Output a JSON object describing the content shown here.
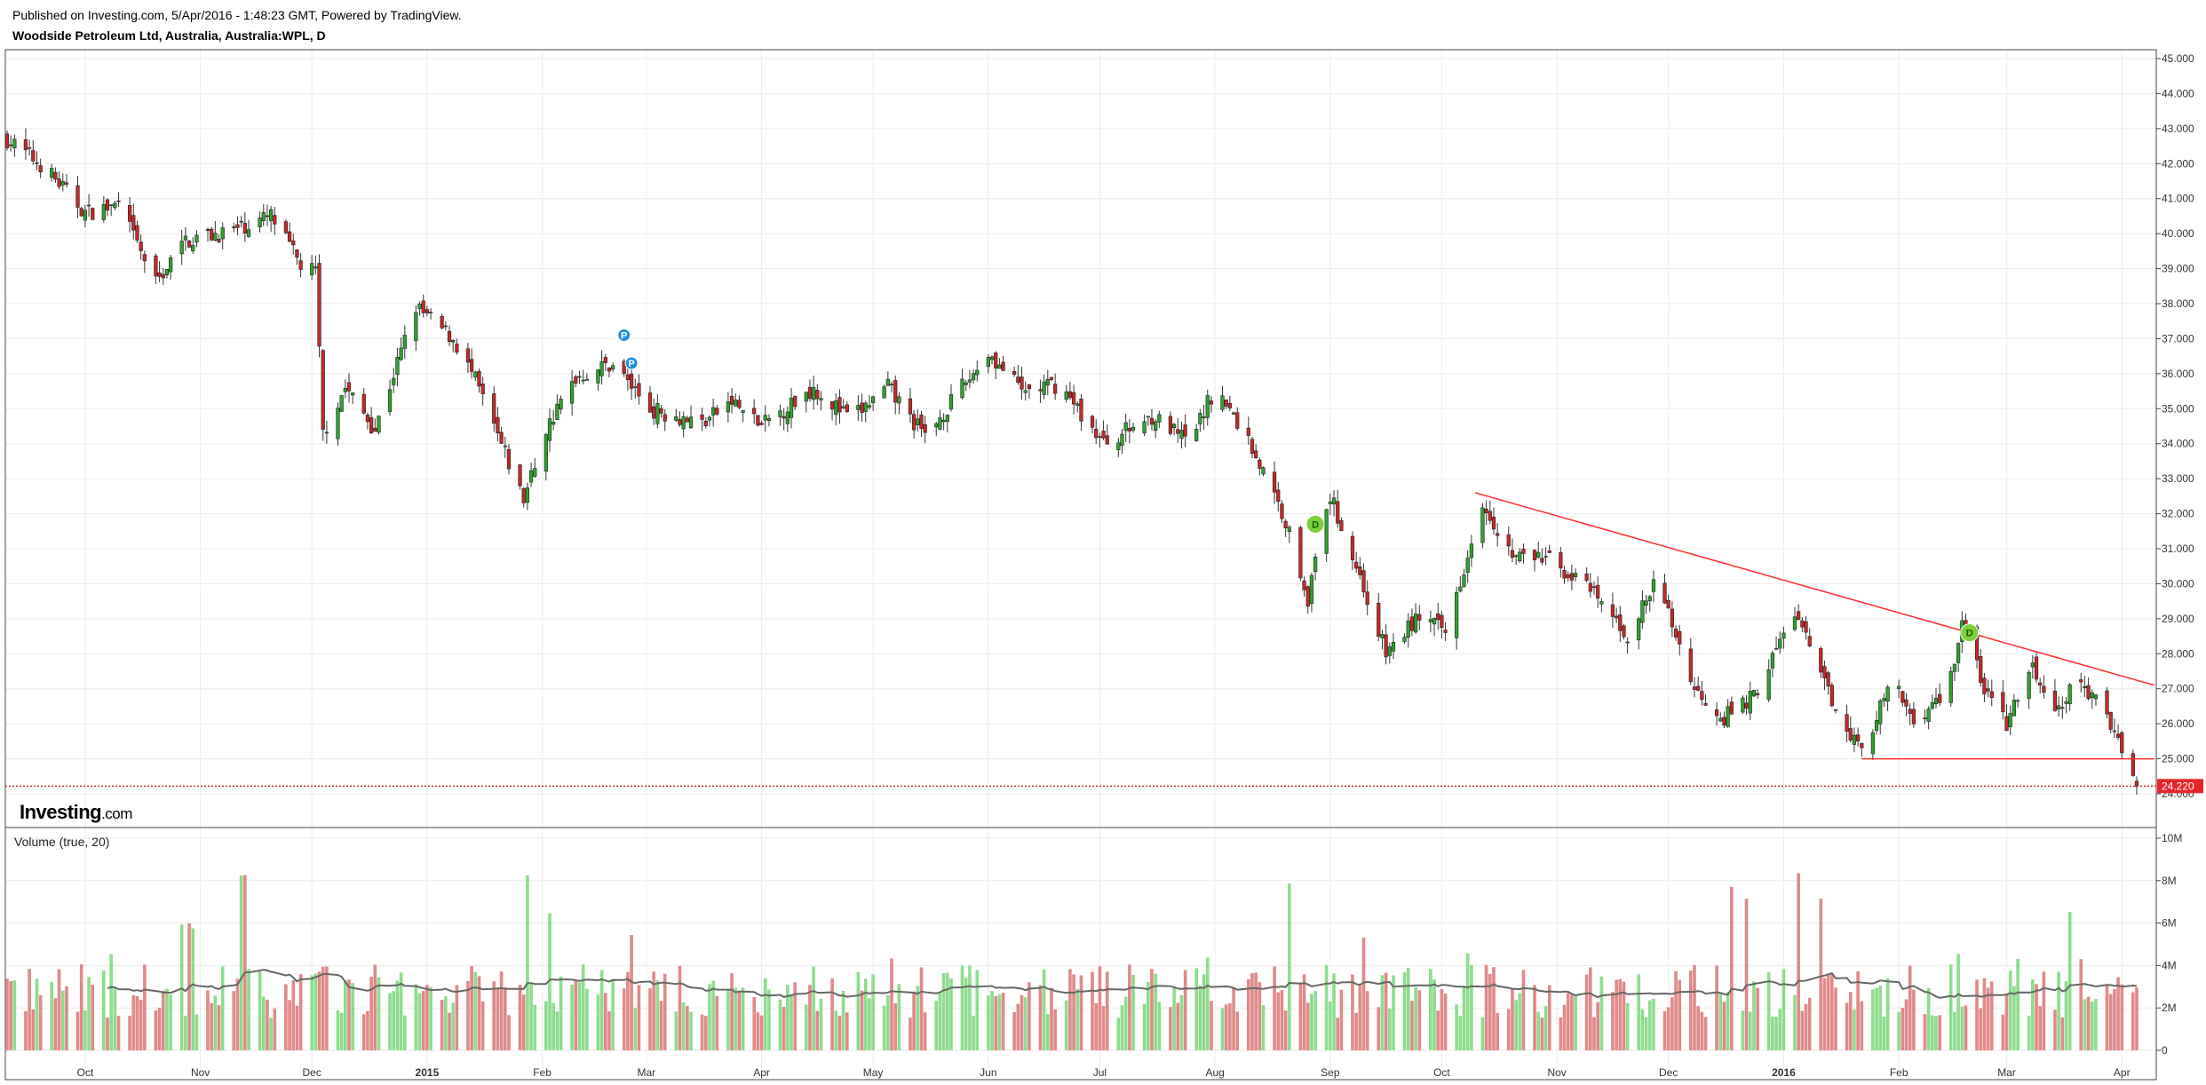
{
  "header": {
    "published": "Published on Investing.com, 5/Apr/2016 - 1:48:23 GMT, Powered by TradingView.",
    "symbol": "Woodside Petroleum Ltd, Australia, Australia:WPL, D"
  },
  "logo": {
    "brand": "Investing",
    "suffix": ".com"
  },
  "colors": {
    "up": "#2ea32e",
    "down": "#c22a2a",
    "vol_up": "#8fdc8f",
    "vol_down": "#e08a8a",
    "trendline": "#ff2a2a",
    "ma": "#666666"
  },
  "chart_data": [
    {
      "type": "candlestick",
      "title": "Woodside Petroleum Ltd, Australia, Australia:WPL, D",
      "ylim": [
        24,
        45
      ],
      "y_ticks": [
        "45.000",
        "44.000",
        "43.000",
        "42.000",
        "41.000",
        "40.000",
        "39.000",
        "38.000",
        "37.000",
        "36.000",
        "35.000",
        "34.000",
        "33.000",
        "32.000",
        "31.000",
        "30.000",
        "29.000",
        "28.000",
        "27.000",
        "26.000",
        "25.000",
        "24.000"
      ],
      "x_ticks": [
        {
          "label": "Oct",
          "date": "2014-10-01"
        },
        {
          "label": "Nov",
          "date": "2014-11-01"
        },
        {
          "label": "Dec",
          "date": "2014-12-01"
        },
        {
          "label": "2015",
          "date": "2015-01-01",
          "bold": true
        },
        {
          "label": "Feb",
          "date": "2015-02-01"
        },
        {
          "label": "Mar",
          "date": "2015-03-01"
        },
        {
          "label": "Apr",
          "date": "2015-04-01"
        },
        {
          "label": "May",
          "date": "2015-05-01"
        },
        {
          "label": "Jun",
          "date": "2015-06-01"
        },
        {
          "label": "Jul",
          "date": "2015-07-01"
        },
        {
          "label": "Aug",
          "date": "2015-08-01"
        },
        {
          "label": "Sep",
          "date": "2015-09-01"
        },
        {
          "label": "Oct",
          "date": "2015-10-01"
        },
        {
          "label": "Nov",
          "date": "2015-11-01"
        },
        {
          "label": "Dec",
          "date": "2015-12-01"
        },
        {
          "label": "2016",
          "date": "2016-01-01",
          "bold": true
        },
        {
          "label": "Feb",
          "date": "2016-02-01"
        },
        {
          "label": "Mar",
          "date": "2016-03-01"
        },
        {
          "label": "Apr",
          "date": "2016-04-01"
        }
      ],
      "date_range": [
        "2014-09-10",
        "2016-04-05"
      ],
      "close_path": [
        {
          "date": "2014-09-10",
          "close": 42.7
        },
        {
          "date": "2014-09-20",
          "close": 41.9
        },
        {
          "date": "2014-10-01",
          "close": 40.6
        },
        {
          "date": "2014-10-10",
          "close": 40.8
        },
        {
          "date": "2014-10-20",
          "close": 38.6
        },
        {
          "date": "2014-10-28",
          "close": 39.8
        },
        {
          "date": "2014-11-10",
          "close": 40.1
        },
        {
          "date": "2014-11-20",
          "close": 40.5
        },
        {
          "date": "2014-11-28",
          "close": 39.1
        },
        {
          "date": "2014-12-02",
          "close": 38.9
        },
        {
          "date": "2014-12-04",
          "close": 34.3
        },
        {
          "date": "2014-12-10",
          "close": 35.6
        },
        {
          "date": "2014-12-18",
          "close": 34.4
        },
        {
          "date": "2014-12-29",
          "close": 37.9
        },
        {
          "date": "2015-01-08",
          "close": 37.0
        },
        {
          "date": "2015-01-14",
          "close": 35.8
        },
        {
          "date": "2015-01-20",
          "close": 34.2
        },
        {
          "date": "2015-01-27",
          "close": 32.4
        },
        {
          "date": "2015-02-02",
          "close": 34.4
        },
        {
          "date": "2015-02-10",
          "close": 35.9
        },
        {
          "date": "2015-02-20",
          "close": 36.3
        },
        {
          "date": "2015-03-02",
          "close": 35.0
        },
        {
          "date": "2015-03-16",
          "close": 34.6
        },
        {
          "date": "2015-03-24",
          "close": 35.2
        },
        {
          "date": "2015-04-01",
          "close": 34.5
        },
        {
          "date": "2015-04-15",
          "close": 35.6
        },
        {
          "date": "2015-04-25",
          "close": 34.7
        },
        {
          "date": "2015-05-05",
          "close": 35.6
        },
        {
          "date": "2015-05-15",
          "close": 34.2
        },
        {
          "date": "2015-05-25",
          "close": 35.6
        },
        {
          "date": "2015-06-01",
          "close": 36.6
        },
        {
          "date": "2015-06-10",
          "close": 35.5
        },
        {
          "date": "2015-06-20",
          "close": 35.7
        },
        {
          "date": "2015-07-02",
          "close": 34.0
        },
        {
          "date": "2015-07-15",
          "close": 34.8
        },
        {
          "date": "2015-07-25",
          "close": 34.0
        },
        {
          "date": "2015-08-01",
          "close": 35.6
        },
        {
          "date": "2015-08-10",
          "close": 34.1
        },
        {
          "date": "2015-08-20",
          "close": 31.8
        },
        {
          "date": "2015-08-26",
          "close": 29.6
        },
        {
          "date": "2015-09-01",
          "close": 32.5
        },
        {
          "date": "2015-09-08",
          "close": 30.5
        },
        {
          "date": "2015-09-16",
          "close": 28.0
        },
        {
          "date": "2015-09-25",
          "close": 29.1
        },
        {
          "date": "2015-10-02",
          "close": 28.6
        },
        {
          "date": "2015-10-12",
          "close": 32.4
        },
        {
          "date": "2015-10-20",
          "close": 30.8
        },
        {
          "date": "2015-10-30",
          "close": 30.7
        },
        {
          "date": "2015-11-10",
          "close": 29.8
        },
        {
          "date": "2015-11-20",
          "close": 28.5
        },
        {
          "date": "2015-11-28",
          "close": 30.1
        },
        {
          "date": "2015-12-08",
          "close": 27.0
        },
        {
          "date": "2015-12-16",
          "close": 26.2
        },
        {
          "date": "2015-12-24",
          "close": 26.8
        },
        {
          "date": "2016-01-04",
          "close": 29.2
        },
        {
          "date": "2016-01-12",
          "close": 27.1
        },
        {
          "date": "2016-01-22",
          "close": 25.2
        },
        {
          "date": "2016-01-30",
          "close": 27.2
        },
        {
          "date": "2016-02-05",
          "close": 26.1
        },
        {
          "date": "2016-02-14",
          "close": 26.9
        },
        {
          "date": "2016-02-18",
          "close": 28.9
        },
        {
          "date": "2016-02-24",
          "close": 27.0
        },
        {
          "date": "2016-03-01",
          "close": 26.0
        },
        {
          "date": "2016-03-08",
          "close": 27.6
        },
        {
          "date": "2016-03-14",
          "close": 26.2
        },
        {
          "date": "2016-03-20",
          "close": 27.3
        },
        {
          "date": "2016-03-28",
          "close": 26.2
        },
        {
          "date": "2016-04-01",
          "close": 25.4
        },
        {
          "date": "2016-04-05",
          "close": 24.22
        }
      ],
      "last_price": 24.22,
      "last_price_label": "24.220",
      "trendlines": [
        {
          "start": {
            "date": "2015-10-10",
            "price": 32.6
          },
          "end": {
            "date": "2016-04-05",
            "price": 27.1
          }
        },
        {
          "start": {
            "date": "2016-01-22",
            "price": 25.0
          },
          "end": {
            "date": "2016-04-05",
            "price": 25.0
          }
        }
      ],
      "markers": [
        {
          "label": "P",
          "date": "2015-02-23",
          "price": 37.1,
          "color": "#1e90e0"
        },
        {
          "label": "P",
          "date": "2015-02-25",
          "price": 36.3,
          "color": "#1e90e0"
        },
        {
          "label": "D",
          "date": "2015-08-28",
          "price": 31.7,
          "color": "#7dcf3a"
        },
        {
          "label": "D",
          "date": "2016-02-20",
          "price": 28.6,
          "color": "#7dcf3a"
        }
      ]
    },
    {
      "type": "bar",
      "title": "Volume (true, 20)",
      "ylim": [
        0,
        10
      ],
      "y_unit": "M",
      "y_ticks": [
        "10M",
        "8M",
        "6M",
        "4M",
        "2M",
        "0"
      ],
      "typical_volume_m": 2.8,
      "ma_length": 20
    }
  ]
}
